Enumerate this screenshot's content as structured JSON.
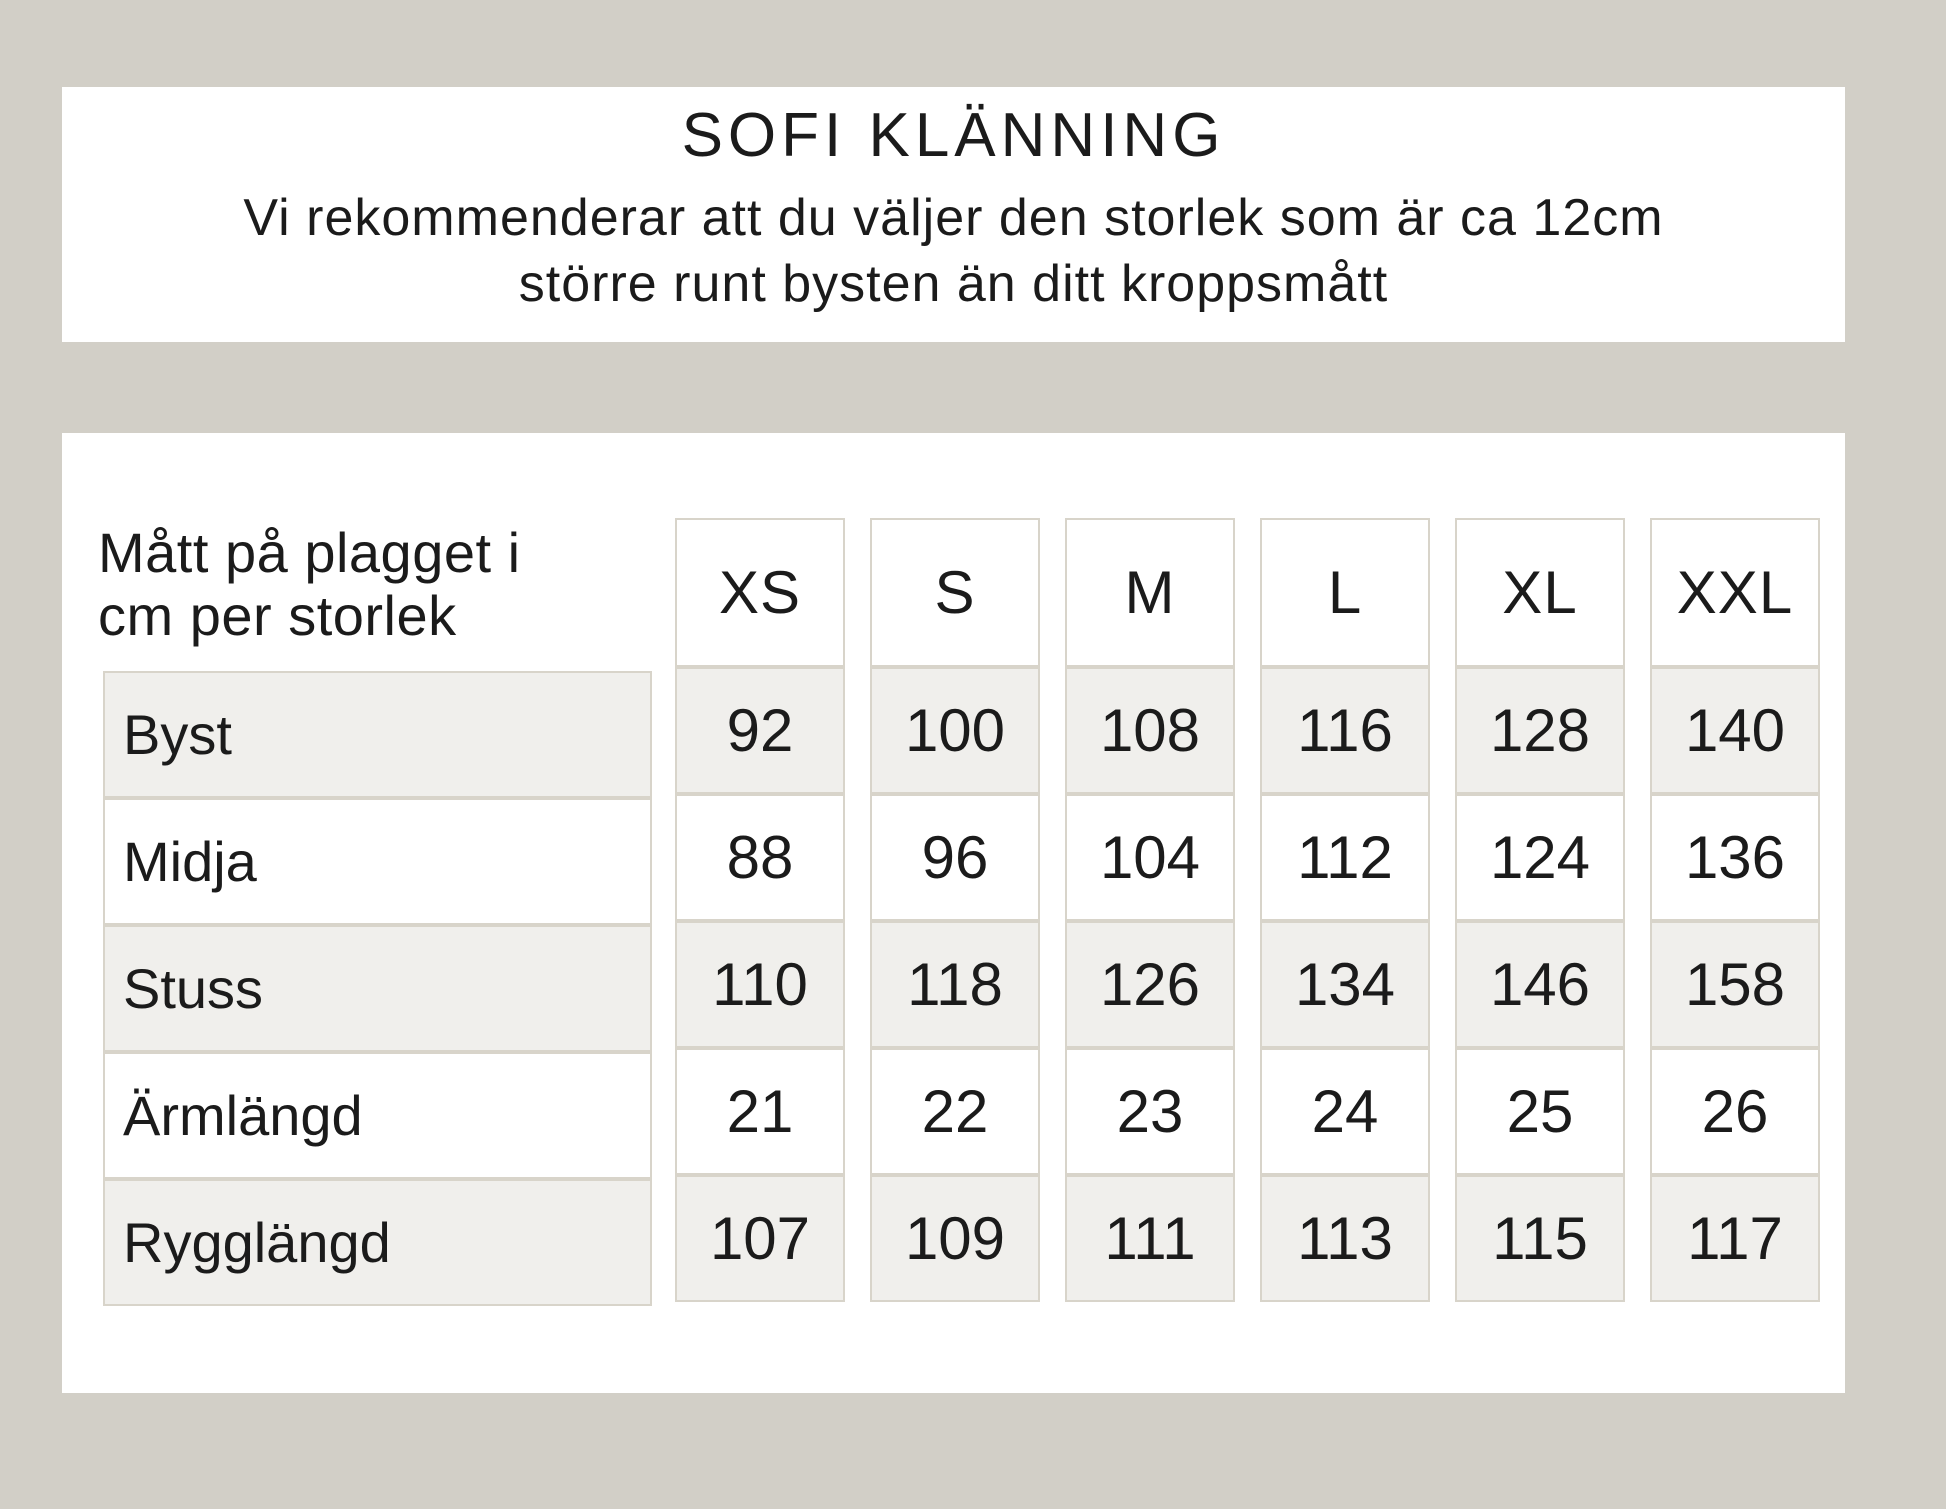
{
  "header": {
    "title": "SOFI KLÄNNING",
    "subtitle_lines": [
      "Vi rekommenderar att du väljer den storlek som är ca 12cm",
      "större runt bysten än ditt kroppsmått"
    ]
  },
  "size_table": {
    "corner_label_lines": [
      "Mått på plagget i",
      "cm per storlek"
    ],
    "size_headers": [
      "XS",
      "S",
      "M",
      "L",
      "XL",
      "XXL"
    ],
    "rows": [
      {
        "label": "Byst",
        "values": [
          "92",
          "100",
          "108",
          "116",
          "128",
          "140"
        ]
      },
      {
        "label": "Midja",
        "values": [
          "88",
          "96",
          "104",
          "112",
          "124",
          "136"
        ]
      },
      {
        "label": "Stuss",
        "values": [
          "110",
          "118",
          "126",
          "134",
          "146",
          "158"
        ]
      },
      {
        "label": "Ärmlängd",
        "values": [
          "21",
          "22",
          "23",
          "24",
          "25",
          "26"
        ]
      },
      {
        "label": "Rygglängd",
        "values": [
          "107",
          "109",
          "111",
          "113",
          "115",
          "117"
        ]
      }
    ]
  },
  "colors": {
    "page_background": "#d2cfc7",
    "panel_background": "#ffffff",
    "cell_shaded_background": "#f0efec",
    "cell_border": "#d8d4ca",
    "text": "#1b1b1b"
  }
}
